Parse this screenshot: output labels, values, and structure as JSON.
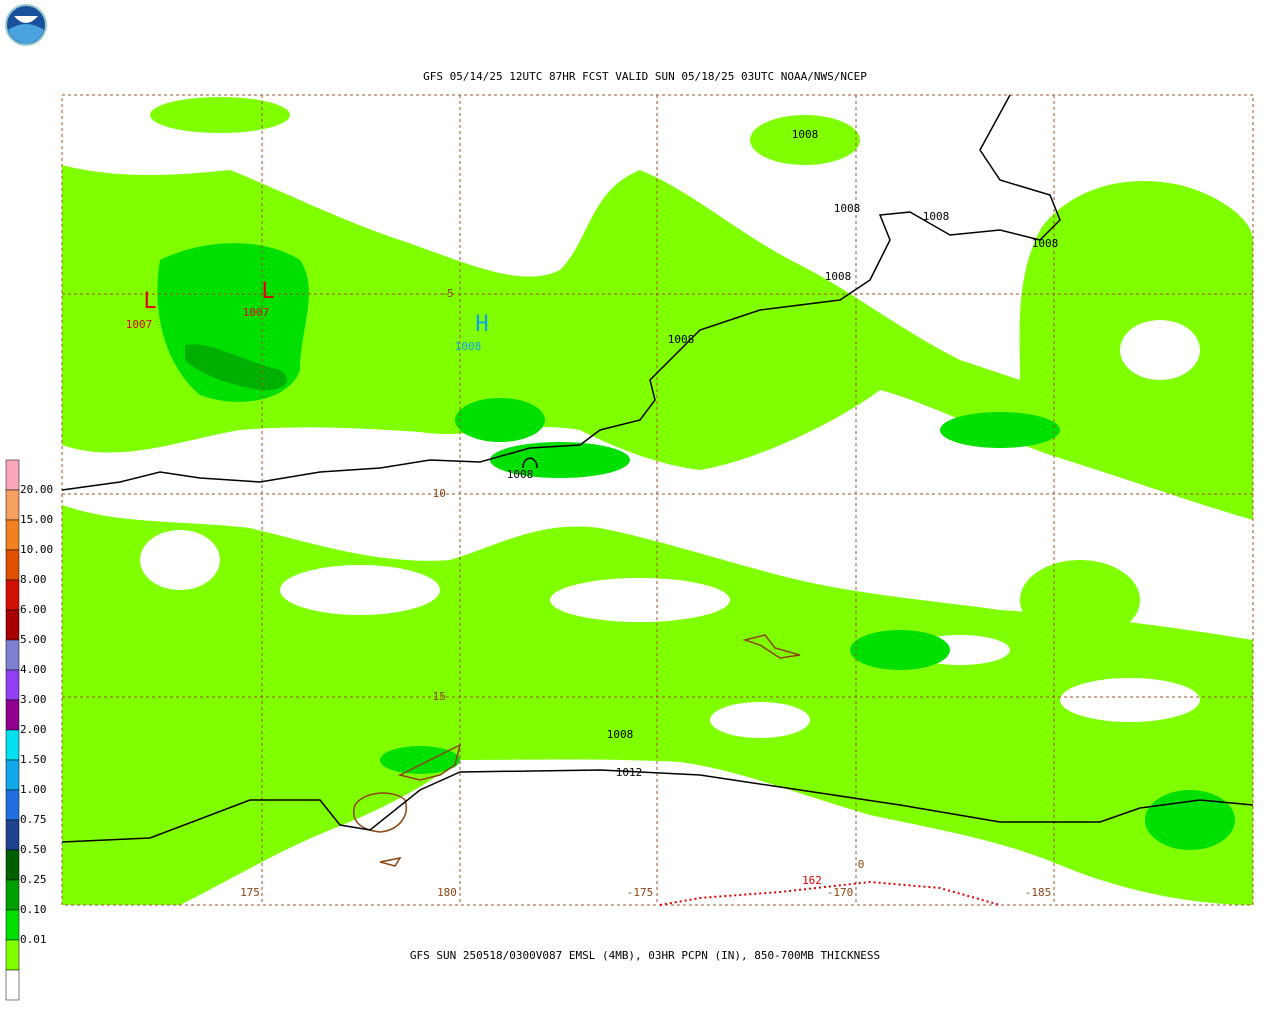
{
  "header": {
    "title": "GFS 05/14/25 12UTC 87HR FCST VALID SUN 05/18/25 03UTC NOAA/NWS/NCEP"
  },
  "footer": {
    "caption": "GFS SUN 250518/0300V087 EMSL (4MB), 03HR PCPN (IN), 850-700MB THICKNESS"
  },
  "legend": {
    "labels": [
      "20.00",
      "15.00",
      "10.00",
      "8.00",
      "6.00",
      "5.00",
      "4.00",
      "3.00",
      "2.00",
      "1.50",
      "1.00",
      "0.75",
      "0.50",
      "0.25",
      "0.10",
      "0.01"
    ],
    "colors": [
      "#f8a8b8",
      "#f8a060",
      "#f08020",
      "#e05000",
      "#d01000",
      "#a80000",
      "#8080d0",
      "#9040f0",
      "#900090",
      "#00e0f0",
      "#10a8e8",
      "#2070e0",
      "#204090",
      "#006000",
      "#00a000",
      "#00e000",
      "#80ff00",
      "#ffffff"
    ]
  },
  "map": {
    "lon_labels": [
      "175",
      "180",
      "-175",
      "-170",
      "-185"
    ],
    "lat_labels": [
      "-5",
      "-10",
      "-15"
    ],
    "centers": [
      {
        "symbol": "L",
        "pressure": "1007"
      },
      {
        "symbol": "L",
        "pressure": "1007"
      },
      {
        "symbol": "H",
        "pressure": "1008"
      }
    ],
    "isobar_labels": [
      "1008",
      "1008",
      "1008",
      "1008",
      "1008",
      "1008",
      "1008",
      "1008",
      "1012"
    ],
    "thickness_labels": [
      "162",
      "0"
    ]
  }
}
